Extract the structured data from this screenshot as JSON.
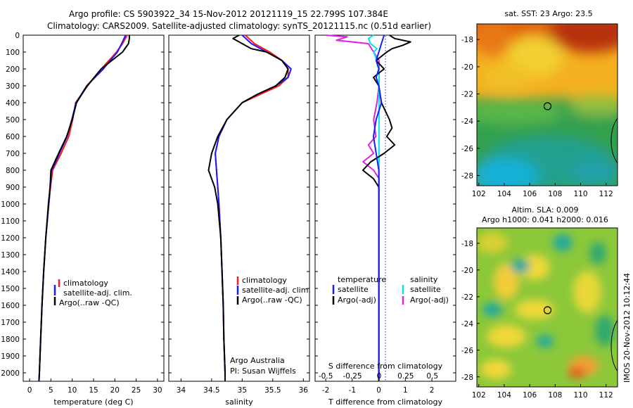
{
  "header": {
    "line1": "Argo profile: CS 5903922_34 15-Nov-2012 20121119_15 22.799S 107.384E",
    "line2": "Climatology: CARS2009. Satellite-adjusted climatology: synTS_20121115.nc (0.51d earlier)"
  },
  "colors": {
    "clim": "#ff1a1a",
    "sat": "#1a1aff",
    "argo": "#000000",
    "sat_s": "#00e5e5",
    "argo_s": "#e020e0"
  },
  "depth_axis": {
    "ylim": [
      2050,
      0
    ],
    "ticks": [
      0,
      100,
      200,
      300,
      400,
      500,
      600,
      700,
      800,
      900,
      1000,
      1100,
      1200,
      1300,
      1400,
      1500,
      1600,
      1700,
      1800,
      1900,
      2000
    ]
  },
  "temp_panel": {
    "xlabel": "temperature (deg C)",
    "xticks": [
      "0",
      "5",
      "10",
      "15",
      "20",
      "25",
      "30"
    ],
    "legend": [
      "climatology",
      "satellite-adj. clim.",
      "Argo(..raw -QC)"
    ]
  },
  "sal_panel": {
    "xlabel": "salinity",
    "xticks": [
      "34",
      "34.5",
      "35",
      "35.5",
      "36"
    ],
    "legend": [
      "climatology",
      "satellite-adj. clim.",
      "Argo(..raw -QC)"
    ],
    "note1": "Argo Australia",
    "note2": "PI: Susan Wijffels"
  },
  "diff_panel": {
    "xlabel": "T difference from climatology",
    "s_label": "S difference from climatology",
    "s_ticks": [
      "-0.5",
      "-0.25",
      "0",
      "0.25",
      "0.5"
    ],
    "t_ticks": [
      "-2",
      "-1",
      "0",
      "1",
      "2"
    ],
    "legend_t_title": "temperature",
    "legend_s_title": "salinity",
    "legend_t": [
      "satellite",
      "Argo(-adj)"
    ],
    "legend_s": [
      "satellite",
      "Argo(-adj)"
    ]
  },
  "sst_map": {
    "title": "sat. SST: 23 Argo: 23.5",
    "yticks": [
      "-18",
      "-20",
      "-22",
      "-24",
      "-26",
      "-28"
    ],
    "xticks": [
      "102",
      "104",
      "106",
      "108",
      "110",
      "112"
    ]
  },
  "sla_map": {
    "title1": "Altim. SLA: 0.009",
    "title2": "Argo h1000: 0.041 h2000: 0.016",
    "yticks": [
      "-18",
      "-20",
      "-22",
      "-24",
      "-26",
      "-28"
    ],
    "xticks": [
      "102",
      "104",
      "106",
      "108",
      "110",
      "112"
    ]
  },
  "side_label": "IMOS 20-Nov-2012 10:12:44",
  "chart_data": [
    {
      "type": "line",
      "xlabel": "temperature (deg C)",
      "ylabel": "",
      "xlim": [
        -1.5,
        31.5
      ],
      "ylim": [
        2050,
        0
      ],
      "series": [
        {
          "name": "climatology",
          "depth": [
            0,
            50,
            100,
            200,
            300,
            400,
            500,
            600,
            700,
            800,
            900,
            1000,
            1200,
            1400,
            1600,
            1800,
            2000,
            2050
          ],
          "values": [
            22.9,
            21.8,
            20.4,
            16.8,
            13.6,
            10.8,
            10.1,
            9.2,
            7.4,
            5.4,
            4.9,
            4.5,
            3.8,
            3.3,
            2.9,
            2.6,
            2.3,
            2.2
          ]
        },
        {
          "name": "satellite-adj. clim.",
          "depth": [
            0,
            50,
            100,
            200,
            300,
            400,
            500,
            600,
            700,
            800,
            900,
            1000,
            1200,
            1400,
            1600,
            1800,
            2000,
            2050
          ],
          "values": [
            22.5,
            21.6,
            20.6,
            17.3,
            13.4,
            10.9,
            9.9,
            8.8,
            7.0,
            5.2,
            4.8,
            4.5,
            3.8,
            3.3,
            2.9,
            2.6,
            2.3,
            2.2
          ]
        },
        {
          "name": "Argo(..raw -QC)",
          "depth": [
            0,
            20,
            50,
            100,
            200,
            300,
            400,
            500,
            600,
            700,
            800,
            900,
            1000,
            1200,
            1400,
            1600,
            1800,
            2000,
            2050
          ],
          "values": [
            23.4,
            23.4,
            23.2,
            21.8,
            16.8,
            13.5,
            11.0,
            10.0,
            8.7,
            6.8,
            5.0,
            4.8,
            4.4,
            3.8,
            3.3,
            2.9,
            2.6,
            2.3,
            2.2
          ]
        }
      ]
    },
    {
      "type": "line",
      "xlabel": "salinity",
      "ylabel": "",
      "xlim": [
        33.8,
        36.1
      ],
      "ylim": [
        2050,
        0
      ],
      "series": [
        {
          "name": "climatology",
          "depth": [
            0,
            50,
            100,
            150,
            200,
            250,
            300,
            350,
            400,
            500,
            600,
            700,
            800,
            900,
            1000,
            1200,
            1400,
            1600,
            1800,
            2000,
            2050
          ],
          "values": [
            35.05,
            35.2,
            35.45,
            35.65,
            35.75,
            35.75,
            35.6,
            35.3,
            35.0,
            34.75,
            34.62,
            34.56,
            34.58,
            34.6,
            34.62,
            34.65,
            34.67,
            34.69,
            34.7,
            34.72,
            34.72
          ]
        },
        {
          "name": "satellite-adj. clim.",
          "depth": [
            0,
            50,
            100,
            150,
            200,
            250,
            300,
            350,
            400,
            500,
            600,
            700,
            800,
            900,
            1000,
            1200,
            1400,
            1600,
            1800,
            2000,
            2050
          ],
          "values": [
            35.0,
            35.15,
            35.4,
            35.65,
            35.8,
            35.75,
            35.55,
            35.25,
            35.0,
            34.75,
            34.62,
            34.56,
            34.58,
            34.6,
            34.62,
            34.65,
            34.67,
            34.69,
            34.7,
            34.72,
            34.72
          ]
        },
        {
          "name": "Argo(..raw -QC)",
          "depth": [
            0,
            20,
            50,
            80,
            100,
            150,
            200,
            250,
            300,
            350,
            400,
            500,
            600,
            700,
            800,
            900,
            1000,
            1200,
            1400,
            1600,
            1800,
            2000,
            2050
          ],
          "values": [
            34.95,
            34.85,
            35.0,
            35.15,
            35.4,
            35.65,
            35.75,
            35.7,
            35.55,
            35.25,
            35.0,
            34.75,
            34.6,
            34.5,
            34.45,
            34.55,
            34.6,
            34.65,
            34.67,
            34.69,
            34.7,
            34.72,
            34.72
          ]
        }
      ]
    },
    {
      "type": "line",
      "xlabel": "T difference from climatology",
      "ylabel": "",
      "xlim": [
        -2.4,
        2.9
      ],
      "ylim": [
        2050,
        0
      ],
      "series": [
        {
          "name": "temperature satellite",
          "depth": [
            0,
            50,
            100,
            150,
            200,
            250,
            300,
            400,
            500,
            600,
            700,
            800,
            900,
            1000,
            1200,
            1500,
            2000,
            2050
          ],
          "values": [
            0.2,
            0.1,
            0.0,
            -0.1,
            0.0,
            -0.1,
            0.0,
            0.1,
            -0.1,
            -0.2,
            -0.1,
            0.0,
            0.0,
            0.0,
            0.0,
            0.0,
            0.0,
            0.0
          ]
        },
        {
          "name": "temperature Argo(-adj)",
          "depth": [
            0,
            20,
            40,
            60,
            80,
            100,
            150,
            200,
            250,
            300,
            400,
            500,
            550,
            600,
            650,
            700,
            750,
            800,
            850,
            900,
            1000,
            1200,
            1500,
            2000,
            2050
          ],
          "values": [
            0.4,
            0.6,
            1.2,
            0.9,
            0.5,
            0.3,
            -0.1,
            0.2,
            -0.2,
            0.0,
            0.1,
            0.4,
            0.5,
            0.3,
            0.6,
            0.2,
            -0.3,
            -0.6,
            -0.2,
            0.0,
            0.0,
            0.0,
            0.0,
            0.0,
            0.0
          ]
        }
      ]
    },
    {
      "type": "line",
      "xlabel": "S difference from climatology",
      "ylabel": "",
      "xlim": [
        -0.6,
        0.72
      ],
      "ylim": [
        2050,
        0
      ],
      "series": [
        {
          "name": "salinity satellite",
          "depth": [
            0,
            20,
            50,
            80,
            100,
            150,
            200,
            300,
            400,
            500,
            600,
            800,
            1000,
            1500,
            2000,
            2050
          ],
          "values": [
            -0.05,
            -0.1,
            -0.08,
            -0.02,
            -0.05,
            -0.02,
            0.0,
            0.0,
            0.0,
            0.0,
            0.0,
            0.0,
            0.0,
            0.0,
            0.0,
            0.0
          ]
        },
        {
          "name": "salinity Argo(-adj)",
          "depth": [
            0,
            10,
            30,
            50,
            100,
            150,
            200,
            300,
            400,
            500,
            600,
            650,
            700,
            750,
            800,
            850,
            900,
            1000,
            1500,
            2000,
            2050
          ],
          "values": [
            -0.5,
            -0.3,
            -0.4,
            -0.1,
            -0.05,
            0.0,
            0.0,
            0.0,
            -0.02,
            -0.05,
            -0.03,
            -0.1,
            -0.05,
            -0.15,
            -0.05,
            0.0,
            0.0,
            0.0,
            0.0,
            0.0,
            0.0
          ]
        }
      ]
    }
  ]
}
